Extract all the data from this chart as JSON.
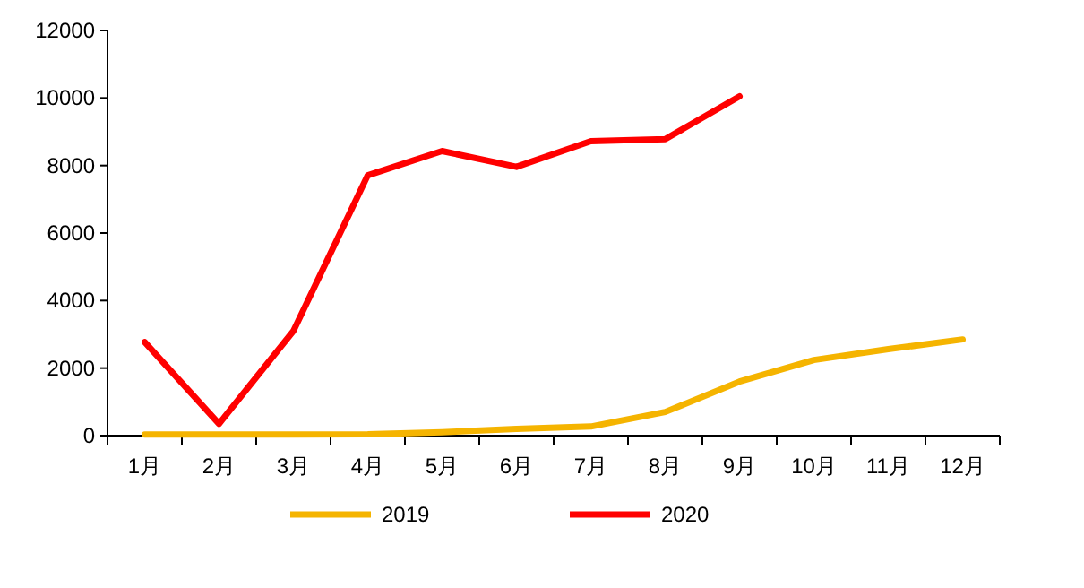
{
  "chart_data": {
    "type": "line",
    "categories": [
      "1月",
      "2月",
      "3月",
      "4月",
      "5月",
      "6月",
      "7月",
      "8月",
      "9月",
      "10月",
      "11月",
      "12月"
    ],
    "series": [
      {
        "name": "2019",
        "color": "#f5b400",
        "values": [
          30,
          30,
          30,
          40,
          100,
          200,
          270,
          700,
          1600,
          2240,
          2560,
          2850
        ]
      },
      {
        "name": "2020",
        "color": "#ff0000",
        "values": [
          2770,
          350,
          3100,
          7710,
          8430,
          7960,
          8720,
          8780,
          10050,
          null,
          null,
          null
        ]
      }
    ],
    "ylim": [
      0,
      12000
    ],
    "yticks": [
      0,
      2000,
      4000,
      6000,
      8000,
      10000,
      12000
    ],
    "legend": "bottom",
    "grid": false,
    "marker": "none",
    "line_style": "solid"
  }
}
